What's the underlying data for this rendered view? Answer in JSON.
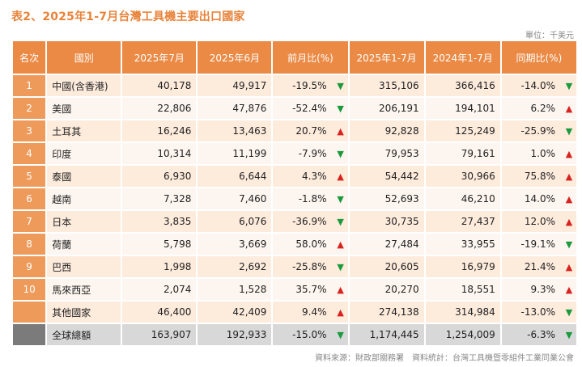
{
  "title": "表2、2025年1-7月台灣工具機主要出口國家",
  "unit": "單位：千美元",
  "source": "資料來源：財政部關務署　資料統計：台灣工具機暨零組件工業同業公會",
  "colors": {
    "header": "#ea8a45",
    "up": "#d9221f",
    "down": "#1a9a3c"
  },
  "columns": [
    "名次",
    "國別",
    "2025年7月",
    "2025年6月",
    "前月比(%)",
    "2025年1-7月",
    "2024年1-7月",
    "同期比(%)"
  ],
  "rows": [
    {
      "rank": "1",
      "country": "中國(含香港)",
      "jul": "40,178",
      "jun": "49,917",
      "mom": "-19.5%",
      "mom_dir": "down",
      "ytd25": "315,106",
      "ytd24": "366,416",
      "yoy": "-14.0%",
      "yoy_dir": "down"
    },
    {
      "rank": "2",
      "country": "美國",
      "jul": "22,806",
      "jun": "47,876",
      "mom": "-52.4%",
      "mom_dir": "down",
      "ytd25": "206,191",
      "ytd24": "194,101",
      "yoy": "6.2%",
      "yoy_dir": "up"
    },
    {
      "rank": "3",
      "country": "土耳其",
      "jul": "16,246",
      "jun": "13,463",
      "mom": "20.7%",
      "mom_dir": "up",
      "ytd25": "92,828",
      "ytd24": "125,249",
      "yoy": "-25.9%",
      "yoy_dir": "down"
    },
    {
      "rank": "4",
      "country": "印度",
      "jul": "10,314",
      "jun": "11,199",
      "mom": "-7.9%",
      "mom_dir": "down",
      "ytd25": "79,953",
      "ytd24": "79,161",
      "yoy": "1.0%",
      "yoy_dir": "up"
    },
    {
      "rank": "5",
      "country": "泰國",
      "jul": "6,930",
      "jun": "6,644",
      "mom": "4.3%",
      "mom_dir": "up",
      "ytd25": "54,442",
      "ytd24": "30,966",
      "yoy": "75.8%",
      "yoy_dir": "up"
    },
    {
      "rank": "6",
      "country": "越南",
      "jul": "7,328",
      "jun": "7,460",
      "mom": "-1.8%",
      "mom_dir": "down",
      "ytd25": "52,693",
      "ytd24": "46,210",
      "yoy": "14.0%",
      "yoy_dir": "up"
    },
    {
      "rank": "7",
      "country": "日本",
      "jul": "3,835",
      "jun": "6,076",
      "mom": "-36.9%",
      "mom_dir": "down",
      "ytd25": "30,735",
      "ytd24": "27,437",
      "yoy": "12.0%",
      "yoy_dir": "up"
    },
    {
      "rank": "8",
      "country": "荷蘭",
      "jul": "5,798",
      "jun": "3,669",
      "mom": "58.0%",
      "mom_dir": "up",
      "ytd25": "27,484",
      "ytd24": "33,955",
      "yoy": "-19.1%",
      "yoy_dir": "down"
    },
    {
      "rank": "9",
      "country": "巴西",
      "jul": "1,998",
      "jun": "2,692",
      "mom": "-25.8%",
      "mom_dir": "down",
      "ytd25": "20,605",
      "ytd24": "16,979",
      "yoy": "21.4%",
      "yoy_dir": "up"
    },
    {
      "rank": "10",
      "country": "馬來西亞",
      "jul": "2,074",
      "jun": "1,528",
      "mom": "35.7%",
      "mom_dir": "up",
      "ytd25": "20,270",
      "ytd24": "18,551",
      "yoy": "9.3%",
      "yoy_dir": "up"
    },
    {
      "rank": "",
      "country": "其他國家",
      "jul": "46,400",
      "jun": "42,409",
      "mom": "9.4%",
      "mom_dir": "up",
      "ytd25": "274,138",
      "ytd24": "314,984",
      "yoy": "-13.0%",
      "yoy_dir": "down"
    },
    {
      "rank": "",
      "country": "全球總額",
      "jul": "163,907",
      "jun": "192,933",
      "mom": "-15.0%",
      "mom_dir": "down",
      "ytd25": "1,174,445",
      "ytd24": "1,254,009",
      "yoy": "-6.3%",
      "yoy_dir": "down",
      "total": true
    }
  ]
}
